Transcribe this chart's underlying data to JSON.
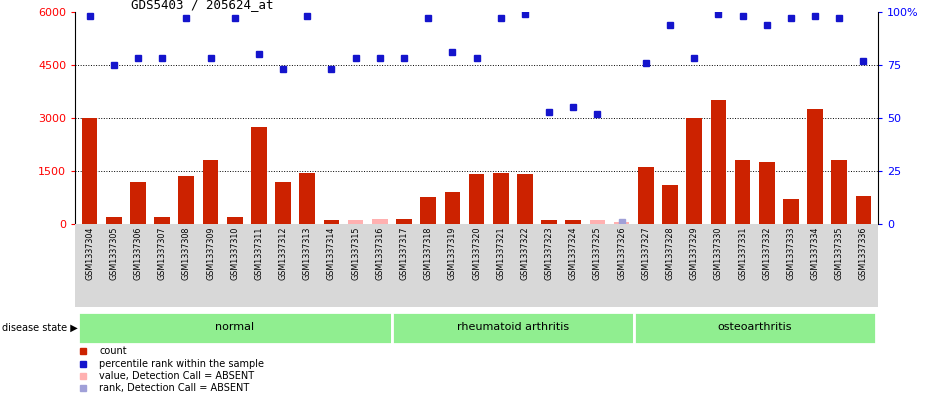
{
  "title": "GDS5403 / 205624_at",
  "samples": [
    "GSM1337304",
    "GSM1337305",
    "GSM1337306",
    "GSM1337307",
    "GSM1337308",
    "GSM1337309",
    "GSM1337310",
    "GSM1337311",
    "GSM1337312",
    "GSM1337313",
    "GSM1337314",
    "GSM1337315",
    "GSM1337316",
    "GSM1337317",
    "GSM1337318",
    "GSM1337319",
    "GSM1337320",
    "GSM1337321",
    "GSM1337322",
    "GSM1337323",
    "GSM1337324",
    "GSM1337325",
    "GSM1337326",
    "GSM1337327",
    "GSM1337328",
    "GSM1337329",
    "GSM1337330",
    "GSM1337331",
    "GSM1337332",
    "GSM1337333",
    "GSM1337334",
    "GSM1337335",
    "GSM1337336"
  ],
  "bar_values": [
    3000,
    200,
    1200,
    200,
    1350,
    1800,
    200,
    2750,
    1200,
    1450,
    100,
    100,
    150,
    150,
    750,
    900,
    1400,
    1450,
    1400,
    100,
    100,
    100,
    50,
    1600,
    1100,
    3000,
    3500,
    1800,
    1750,
    700,
    3250,
    1800,
    800
  ],
  "bar_absent": [
    false,
    false,
    false,
    false,
    false,
    false,
    false,
    false,
    false,
    false,
    false,
    true,
    true,
    false,
    false,
    false,
    false,
    false,
    false,
    false,
    false,
    true,
    true,
    false,
    false,
    false,
    false,
    false,
    false,
    false,
    false,
    false,
    false
  ],
  "rank_values_pct": [
    98,
    75,
    78,
    78,
    97,
    78,
    97,
    80,
    73,
    98,
    73,
    78,
    78,
    78,
    97,
    81,
    78,
    97,
    99,
    53,
    55,
    52,
    1,
    76,
    94,
    78,
    99,
    98,
    94,
    97,
    98,
    97,
    77
  ],
  "rank_absent": [
    false,
    false,
    false,
    false,
    false,
    false,
    false,
    false,
    false,
    false,
    false,
    false,
    false,
    false,
    false,
    false,
    false,
    false,
    false,
    false,
    false,
    false,
    true,
    false,
    false,
    false,
    false,
    false,
    false,
    false,
    false,
    false,
    false
  ],
  "group_labels": [
    "normal",
    "rheumatoid arthritis",
    "osteoarthritis"
  ],
  "group_ranges": [
    [
      0,
      13
    ],
    [
      13,
      23
    ],
    [
      23,
      33
    ]
  ],
  "ylim_left": [
    0,
    6000
  ],
  "ylim_right": [
    0,
    100
  ],
  "yticks_left": [
    0,
    1500,
    3000,
    4500,
    6000
  ],
  "yticks_right": [
    0,
    25,
    50,
    75,
    100
  ],
  "bar_color": "#cc2200",
  "bar_absent_color": "#ffb0b0",
  "rank_color": "#1414cc",
  "rank_absent_color": "#a0a0d8",
  "group_color": "#90ee90",
  "label_bg_color": "#d8d8d8",
  "plot_bg": "#ffffff"
}
